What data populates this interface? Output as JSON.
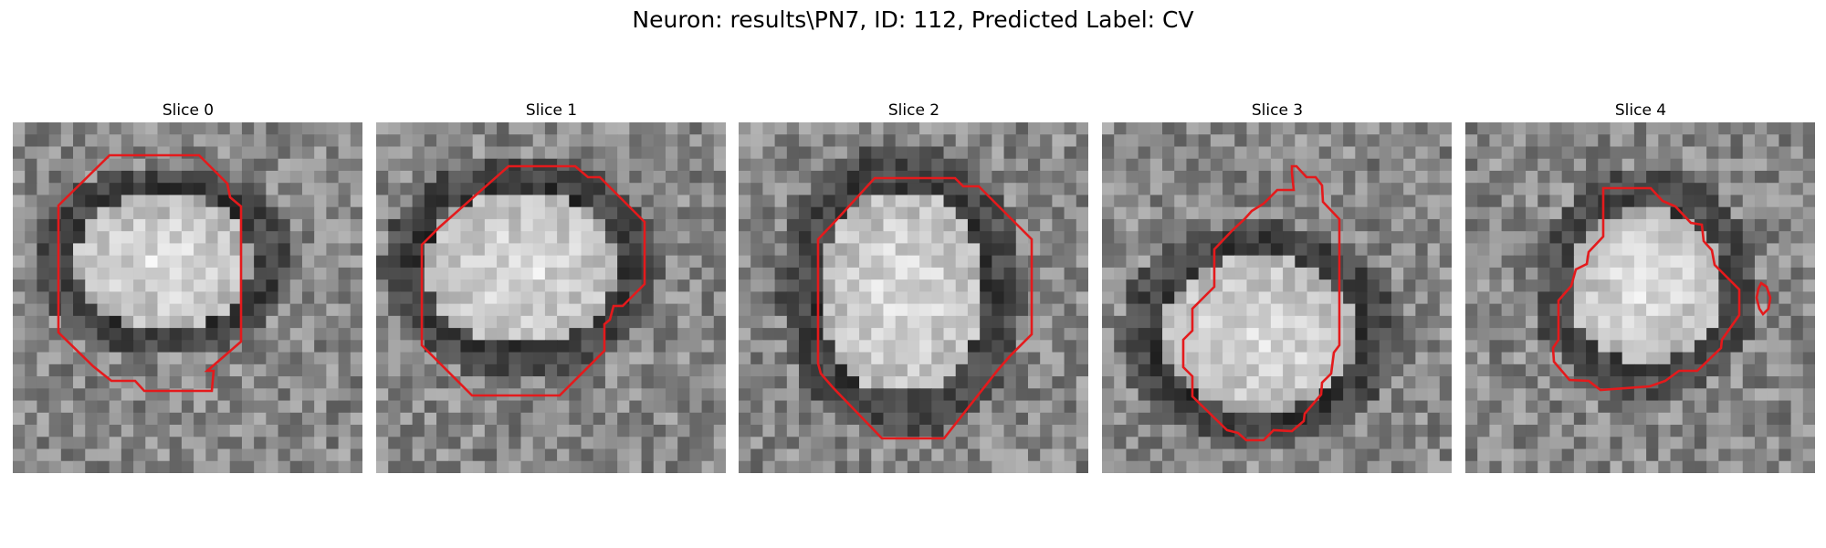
{
  "figure": {
    "title": "Neuron: results\\PN7, ID: 112, Predicted Label: CV"
  },
  "panels": [
    {
      "title": "Slice 0",
      "contour_color": "#e41a1c",
      "seed": 11
    },
    {
      "title": "Slice 1",
      "contour_color": "#e41a1c",
      "seed": 23
    },
    {
      "title": "Slice 2",
      "contour_color": "#e41a1c",
      "seed": 37
    },
    {
      "title": "Slice 3",
      "contour_color": "#e41a1c",
      "seed": 41
    },
    {
      "title": "Slice 4",
      "contour_color": "#e41a1c",
      "seed": 59
    }
  ],
  "colormap": "gray"
}
